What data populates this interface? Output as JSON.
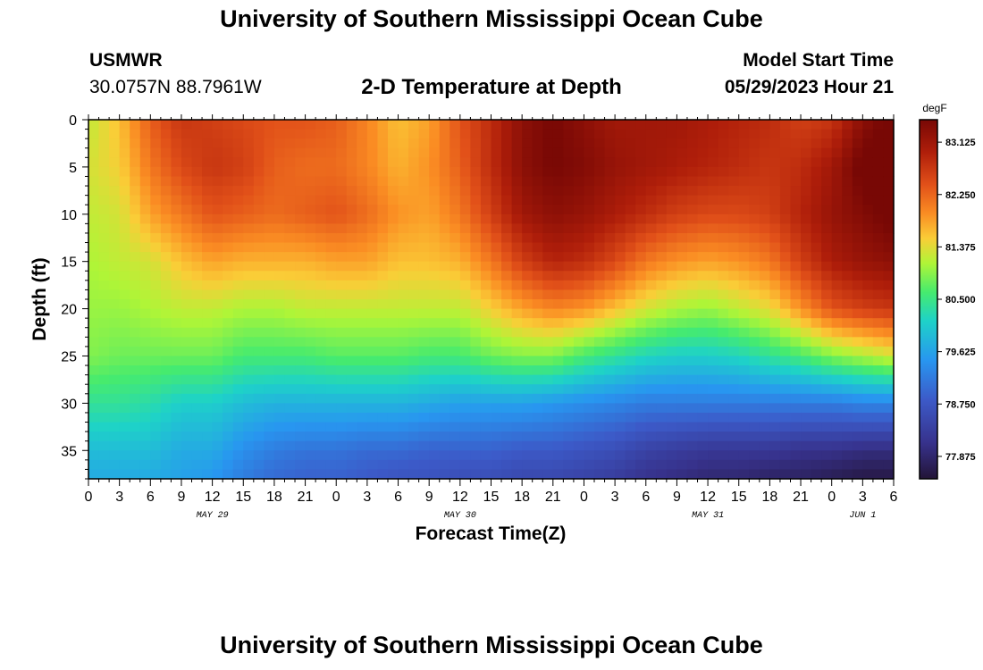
{
  "page": {
    "title": "University of Southern Mississippi Ocean Cube",
    "title_repeat": "University of Southern Mississippi Ocean Cube",
    "station": "USMWR",
    "coords": "30.0757N  88.7961W",
    "subtitle": "2-D Temperature at Depth",
    "model_start_label": "Model Start Time",
    "model_start_value": "05/29/2023 Hour 21"
  },
  "chart_data": {
    "type": "heatmap",
    "title": "2-D Temperature at Depth",
    "xlabel": "Forecast Time(Z)",
    "ylabel": "Depth (ft)",
    "x_range_hours": [
      0,
      78
    ],
    "x_tick_labels": [
      "0",
      "3",
      "6",
      "9",
      "12",
      "15",
      "18",
      "21",
      "0",
      "3",
      "6",
      "9",
      "12",
      "15",
      "18",
      "21",
      "0",
      "3",
      "6",
      "9",
      "12",
      "15",
      "18",
      "21",
      "0",
      "3",
      "6"
    ],
    "date_labels": [
      {
        "label": "MAY 29",
        "hour": 12
      },
      {
        "label": "MAY 30",
        "hour": 36
      },
      {
        "label": "MAY 31",
        "hour": 60
      },
      {
        "label": "JUN 1",
        "hour": 75
      }
    ],
    "y_range": [
      0,
      38
    ],
    "y_tick_labels": [
      "0",
      "5",
      "10",
      "15",
      "20",
      "25",
      "30",
      "35"
    ],
    "y_ticks": [
      0,
      5,
      10,
      15,
      20,
      25,
      30,
      35
    ],
    "colorbar": {
      "unit": "degF",
      "min": 77.5,
      "max": 83.5,
      "tick_labels": [
        "83.125",
        "82.250",
        "81.375",
        "80.500",
        "79.625",
        "78.750",
        "77.875"
      ],
      "tick_values": [
        83.125,
        82.25,
        81.375,
        80.5,
        79.625,
        78.75,
        77.875
      ]
    },
    "field": {
      "description_units": "temperature in degF; each profile lists temperatures at depths 0,5,10,15,20,25,30,35,38 ft",
      "depths": [
        0,
        5,
        10,
        15,
        20,
        25,
        30,
        35,
        38
      ],
      "profiles": [
        {
          "hour": 0,
          "temps": [
            81.2,
            81.3,
            81.2,
            81.1,
            81.0,
            80.9,
            80.4,
            79.9,
            79.7
          ]
        },
        {
          "hour": 3,
          "temps": [
            81.6,
            81.5,
            81.3,
            81.2,
            81.0,
            80.8,
            80.4,
            79.9,
            79.7
          ]
        },
        {
          "hour": 6,
          "temps": [
            82.3,
            82.1,
            81.8,
            81.3,
            81.1,
            80.8,
            80.3,
            79.9,
            79.7
          ]
        },
        {
          "hour": 9,
          "temps": [
            82.7,
            82.5,
            82.1,
            81.6,
            81.2,
            80.8,
            80.1,
            79.7,
            79.6
          ]
        },
        {
          "hour": 12,
          "temps": [
            82.6,
            82.7,
            82.4,
            81.8,
            81.2,
            80.8,
            80.1,
            79.7,
            79.5
          ]
        },
        {
          "hour": 15,
          "temps": [
            82.5,
            82.6,
            82.3,
            81.7,
            81.1,
            80.6,
            79.9,
            79.4,
            79.2
          ]
        },
        {
          "hour": 18,
          "temps": [
            82.4,
            82.3,
            82.2,
            81.7,
            81.1,
            80.6,
            79.8,
            79.2,
            79.0
          ]
        },
        {
          "hour": 21,
          "temps": [
            82.4,
            82.2,
            82.3,
            81.7,
            81.2,
            80.6,
            79.8,
            79.1,
            78.9
          ]
        },
        {
          "hour": 24,
          "temps": [
            82.3,
            82.2,
            82.4,
            81.8,
            81.2,
            80.7,
            79.8,
            79.1,
            78.9
          ]
        },
        {
          "hour": 27,
          "temps": [
            82.0,
            82.0,
            82.2,
            81.8,
            81.2,
            80.7,
            79.8,
            79.0,
            78.8
          ]
        },
        {
          "hour": 30,
          "temps": [
            81.6,
            81.7,
            81.9,
            81.6,
            81.2,
            80.7,
            79.8,
            79.0,
            78.7
          ]
        },
        {
          "hour": 33,
          "temps": [
            81.8,
            81.9,
            81.8,
            81.6,
            81.2,
            80.6,
            79.7,
            78.9,
            78.7
          ]
        },
        {
          "hour": 36,
          "temps": [
            82.4,
            82.3,
            82.1,
            81.7,
            81.2,
            80.6,
            79.6,
            78.9,
            78.6
          ]
        },
        {
          "hour": 39,
          "temps": [
            82.8,
            82.8,
            82.6,
            82.1,
            81.5,
            80.8,
            79.6,
            78.9,
            78.6
          ]
        },
        {
          "hour": 42,
          "temps": [
            83.3,
            83.3,
            83.1,
            82.6,
            81.8,
            80.9,
            79.6,
            78.8,
            78.5
          ]
        },
        {
          "hour": 45,
          "temps": [
            83.5,
            83.5,
            83.3,
            82.9,
            82.0,
            80.9,
            79.5,
            78.8,
            78.5
          ]
        },
        {
          "hour": 48,
          "temps": [
            83.3,
            83.4,
            83.2,
            82.8,
            81.9,
            80.6,
            79.4,
            78.7,
            78.4
          ]
        },
        {
          "hour": 51,
          "temps": [
            83.1,
            83.2,
            83.0,
            82.5,
            81.6,
            80.4,
            79.3,
            78.6,
            78.3
          ]
        },
        {
          "hour": 54,
          "temps": [
            83.1,
            83.1,
            82.8,
            82.1,
            81.3,
            80.2,
            79.2,
            78.4,
            78.1
          ]
        },
        {
          "hour": 57,
          "temps": [
            83.1,
            83.0,
            82.6,
            81.9,
            81.1,
            80.1,
            79.2,
            78.3,
            78.0
          ]
        },
        {
          "hour": 60,
          "temps": [
            83.0,
            82.9,
            82.5,
            81.8,
            81.0,
            80.1,
            79.2,
            78.2,
            77.9
          ]
        },
        {
          "hour": 63,
          "temps": [
            82.9,
            82.8,
            82.5,
            81.9,
            81.2,
            80.2,
            79.2,
            78.2,
            77.9
          ]
        },
        {
          "hour": 66,
          "temps": [
            82.8,
            82.7,
            82.6,
            82.1,
            81.4,
            80.4,
            79.2,
            78.2,
            77.8
          ]
        },
        {
          "hour": 69,
          "temps": [
            82.6,
            82.8,
            82.9,
            82.6,
            81.9,
            80.6,
            79.2,
            78.1,
            77.8
          ]
        },
        {
          "hour": 72,
          "temps": [
            82.7,
            83.1,
            83.2,
            83.0,
            82.4,
            80.9,
            79.2,
            78.1,
            77.7
          ]
        },
        {
          "hour": 75,
          "temps": [
            83.3,
            83.6,
            83.4,
            83.2,
            82.6,
            81.1,
            79.3,
            78.0,
            77.6
          ]
        },
        {
          "hour": 78,
          "temps": [
            83.6,
            83.7,
            83.6,
            83.3,
            82.7,
            81.3,
            79.3,
            78.0,
            77.6
          ]
        }
      ]
    }
  }
}
